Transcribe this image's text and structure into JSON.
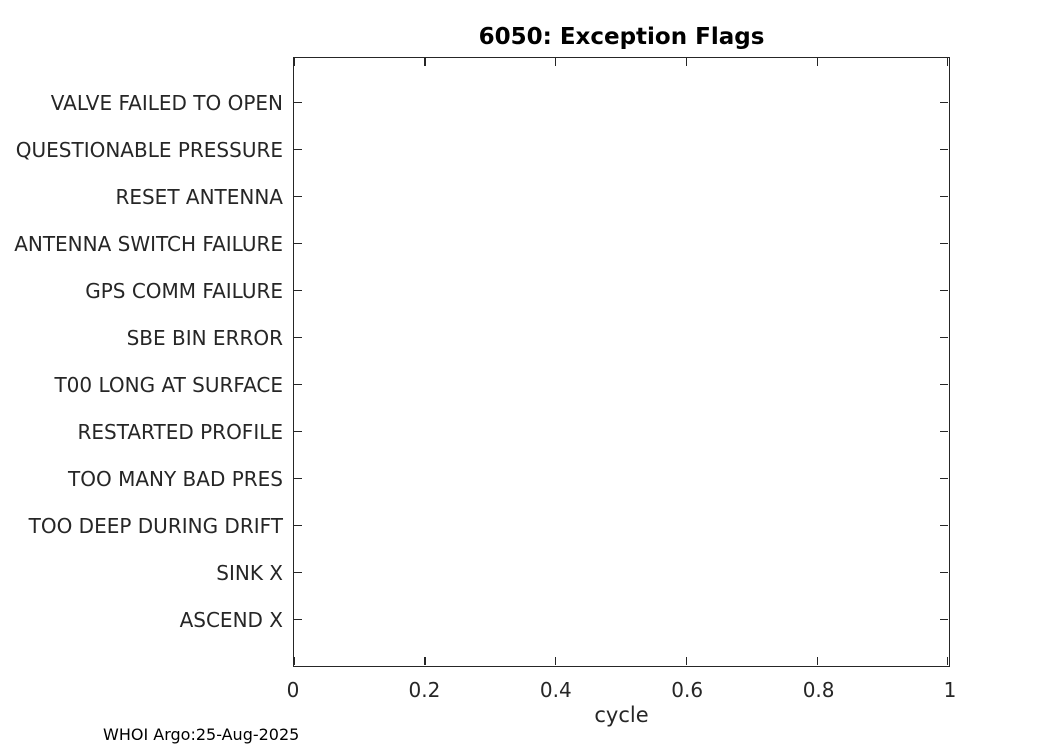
{
  "figure": {
    "title": "6050: Exception Flags",
    "xlabel": "cycle",
    "footer": "WHOI Argo:25-Aug-2025"
  },
  "colors": {
    "background": "#ffffff",
    "axis": "#262626",
    "label_text": "#262626",
    "title_text": "#000000"
  },
  "chart_data": {
    "type": "scatter",
    "title": "6050: Exception Flags",
    "xlabel": "cycle",
    "ylabel": "",
    "xlim": [
      0,
      1
    ],
    "x_ticks": [
      0,
      0.2,
      0.4,
      0.6,
      0.8,
      1
    ],
    "x_tick_labels": [
      "0",
      "0.2",
      "0.4",
      "0.6",
      "0.8",
      "1"
    ],
    "y_categories": [
      "VALVE FAILED TO OPEN",
      "QUESTIONABLE PRESSURE",
      "RESET ANTENNA",
      "ANTENNA SWITCH FAILURE",
      "GPS COMM FAILURE",
      "SBE BIN ERROR",
      "T00 LONG AT SURFACE",
      "RESTARTED PROFILE",
      "TOO MANY BAD PRES",
      "TOO DEEP DURING DRIFT",
      "SINK X",
      "ASCEND X"
    ],
    "series": [],
    "grid": false,
    "legend_position": "none",
    "annotation": "WHOI Argo:25-Aug-2025"
  }
}
